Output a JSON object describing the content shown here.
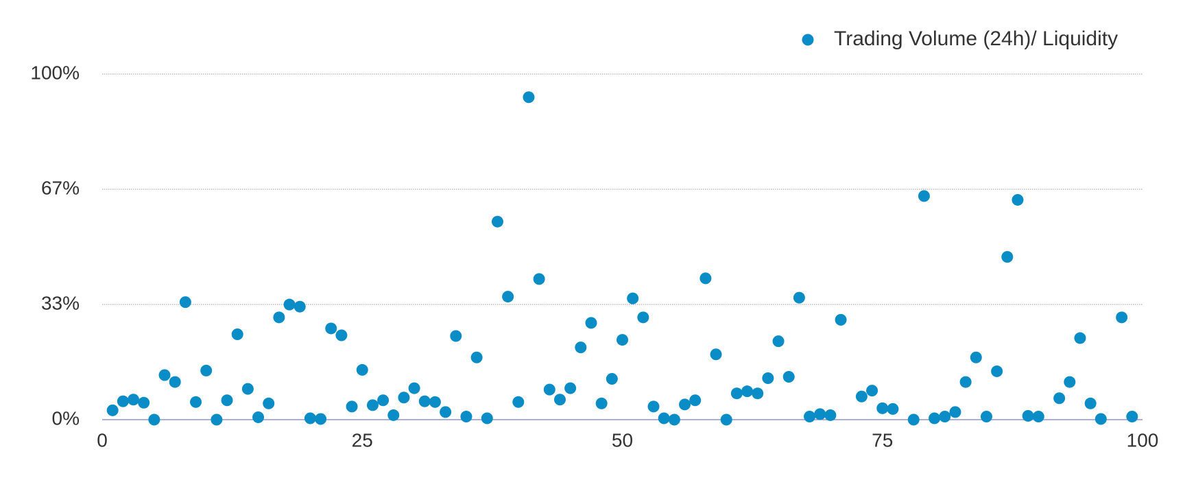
{
  "chart_data": {
    "type": "scatter",
    "series": [
      {
        "name": "Trading Volume (24h)/ Liquidity",
        "color": "#0a8cc6",
        "x": [
          1,
          2,
          3,
          4,
          5,
          6,
          7,
          8,
          9,
          10,
          11,
          12,
          13,
          14,
          15,
          16,
          17,
          18,
          19,
          20,
          21,
          22,
          23,
          24,
          25,
          26,
          27,
          28,
          29,
          30,
          31,
          32,
          33,
          34,
          35,
          36,
          37,
          38,
          39,
          40,
          41,
          42,
          43,
          44,
          45,
          46,
          47,
          48,
          49,
          50,
          51,
          52,
          53,
          54,
          55,
          56,
          57,
          58,
          59,
          60,
          61,
          62,
          63,
          64,
          65,
          66,
          67,
          68,
          69,
          70,
          71,
          73,
          74,
          75,
          76,
          78,
          79,
          80,
          81,
          82,
          83,
          84,
          85,
          86,
          87,
          88,
          89,
          90,
          92,
          93,
          94,
          95,
          96,
          98,
          99
        ],
        "values": [
          2.7,
          5.3,
          5.8,
          4.9,
          0,
          12.9,
          10.9,
          34,
          5.1,
          14.2,
          0,
          5.6,
          24.7,
          8.9,
          0.7,
          4.7,
          29.6,
          33.3,
          32.7,
          0.4,
          0.2,
          26.4,
          24.4,
          3.8,
          14.4,
          4.2,
          5.6,
          1.3,
          6.4,
          9.1,
          5.3,
          5.1,
          2.2,
          24.2,
          0.9,
          18,
          0.4,
          57.3,
          35.6,
          5.1,
          93.3,
          40.7,
          8.7,
          5.8,
          9.1,
          20.9,
          28,
          4.7,
          11.8,
          23.1,
          35.1,
          29.6,
          3.8,
          0.4,
          0,
          4.4,
          5.6,
          40.9,
          18.9,
          0,
          7.6,
          8.2,
          7.6,
          12,
          22.7,
          12.4,
          35.3,
          0.9,
          1.6,
          1.3,
          28.9,
          6.7,
          8.4,
          3.3,
          3.1,
          0,
          64.7,
          0.4,
          0.9,
          2.2,
          10.9,
          18,
          0.9,
          14,
          47.1,
          63.6,
          1.1,
          0.9,
          6.2,
          10.9,
          23.6,
          4.7,
          0.2,
          29.6,
          0.9
        ]
      }
    ],
    "xlim": [
      0,
      100
    ],
    "xticks": [
      0,
      25,
      50,
      75,
      100
    ],
    "ylim": [
      0,
      100
    ],
    "yticks": [
      {
        "value": 0,
        "label": "0%"
      },
      {
        "value": 33.33,
        "label": "33%"
      },
      {
        "value": 66.67,
        "label": "67%"
      },
      {
        "value": 100,
        "label": "100%"
      }
    ],
    "grid": true,
    "legend": "top-right"
  }
}
